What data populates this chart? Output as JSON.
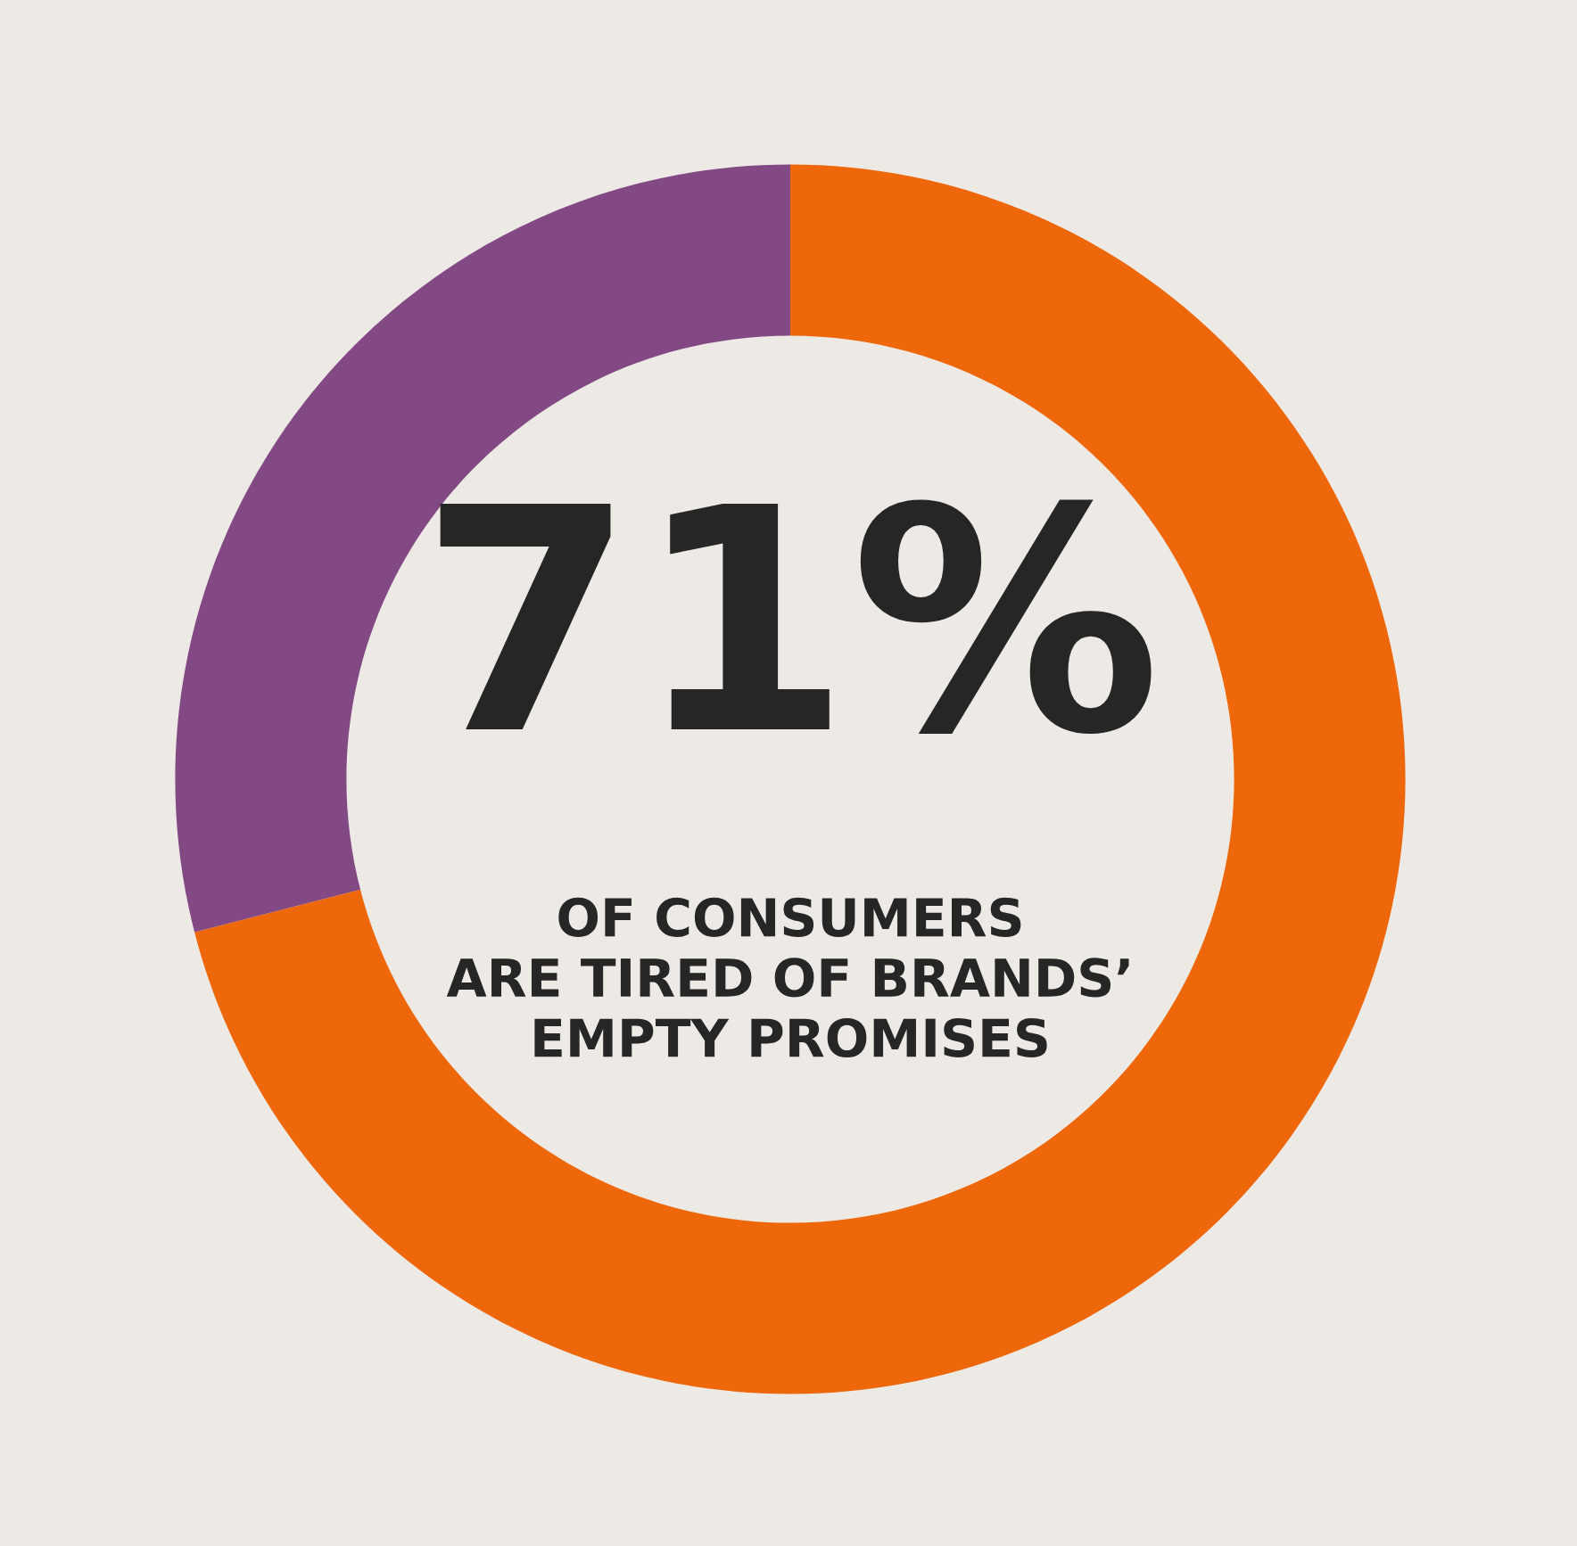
{
  "chart_data": {
    "type": "donut",
    "categories": [
      null,
      null
    ],
    "values": [
      71,
      29
    ],
    "colors": [
      "#ee670b",
      "#834984"
    ],
    "annotations": [
      "71%",
      "OF CONSUMERS\nARE TIRED OF BRANDS’\nEMPTY PROMISES"
    ]
  }
}
